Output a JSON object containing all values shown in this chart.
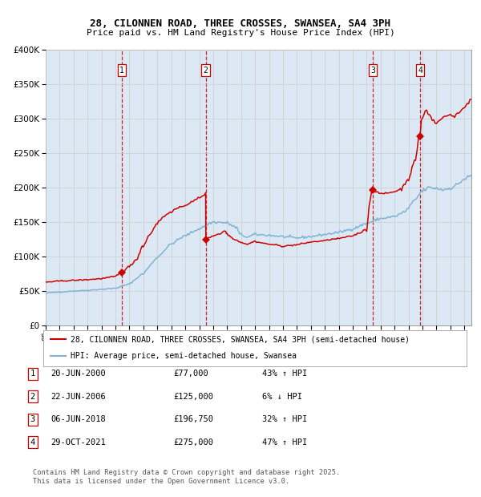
{
  "title": "28, CILONNEN ROAD, THREE CROSSES, SWANSEA, SA4 3PH",
  "subtitle": "Price paid vs. HM Land Registry's House Price Index (HPI)",
  "red_label": "28, CILONNEN ROAD, THREE CROSSES, SWANSEA, SA4 3PH (semi-detached house)",
  "blue_label": "HPI: Average price, semi-detached house, Swansea",
  "footer": "Contains HM Land Registry data © Crown copyright and database right 2025.\nThis data is licensed under the Open Government Licence v3.0.",
  "transactions": [
    {
      "num": 1,
      "date": "20-JUN-2000",
      "price": 77000,
      "pct": "43%",
      "dir": "↑",
      "x_year": 2000.46
    },
    {
      "num": 2,
      "date": "22-JUN-2006",
      "price": 125000,
      "pct": "6%",
      "dir": "↓",
      "x_year": 2006.47
    },
    {
      "num": 3,
      "date": "06-JUN-2018",
      "price": 196750,
      "pct": "32%",
      "dir": "↑",
      "x_year": 2018.43
    },
    {
      "num": 4,
      "date": "29-OCT-2021",
      "price": 275000,
      "pct": "47%",
      "dir": "↑",
      "x_year": 2021.83
    }
  ],
  "red_color": "#cc0000",
  "blue_color": "#7fb3d3",
  "dashed_color": "#cc0000",
  "bg_color": "#dce9f5",
  "plot_bg": "#ffffff",
  "grid_color": "#cccccc",
  "ylim": [
    0,
    400000
  ],
  "xlim_start": 1995.0,
  "xlim_end": 2025.5
}
